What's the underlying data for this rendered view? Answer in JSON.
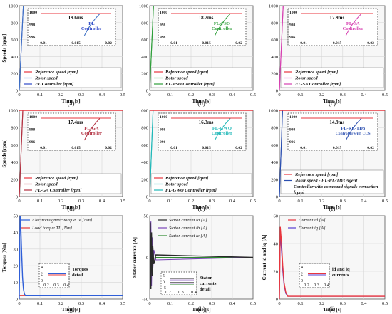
{
  "colors": {
    "reference": "#e8363e",
    "rotor": "#3c6fc4",
    "fl": "#2f48c8",
    "pso": "#2e9e3a",
    "sa": "#d63fb0",
    "ga": "#b23040",
    "gwo": "#20b8b8",
    "rl": "#2b4fb0",
    "torque_te": "#2f5fd8",
    "torque_tl": "#e43a3a",
    "stator_a": "#2a2a2a",
    "stator_b": "#7a46b8",
    "stator_c": "#2e8a30",
    "id_current": "#e8363e",
    "iq_current": "#5a3ed0"
  },
  "chart_data": [
    {
      "type": "line",
      "panel": "(a)",
      "xlabel": "Time [s]",
      "ylabel": "Speeds [rpm]",
      "xlim": [
        0,
        0.5
      ],
      "ylim": [
        0,
        1000
      ],
      "xticks": [
        "0",
        "0.1",
        "0.2",
        "0.3",
        "0.4",
        "0.5"
      ],
      "yticks": [
        "0",
        "200",
        "400",
        "600",
        "800",
        "1000"
      ],
      "series": [
        {
          "name": "Reference speed [rpm]",
          "color_key": "reference",
          "x": [
            0,
            0.5
          ],
          "y": [
            1000,
            1000
          ]
        },
        {
          "name": "Rotor speed",
          "color_key": "rotor",
          "x": [
            0,
            0.0196,
            0.5
          ],
          "y": [
            0,
            1000,
            1000
          ]
        },
        {
          "name": "FL Controller [rpm]",
          "color_key": "fl",
          "x": [
            0,
            0.0196,
            0.5
          ],
          "y": [
            0,
            1000,
            1000
          ]
        }
      ],
      "inset": {
        "annotation": "19.6ms",
        "label_lines": [
          "FL",
          "Controller"
        ],
        "label_color_key": "fl",
        "yticks": [
          "1000",
          "998",
          "996"
        ],
        "xticks": [
          "0.01",
          "0.015",
          "0.02"
        ]
      }
    },
    {
      "type": "line",
      "panel": "(b)",
      "xlabel": "Time [s]",
      "ylabel": "",
      "xlim": [
        0,
        0.5
      ],
      "ylim": [
        0,
        1000
      ],
      "xticks": [
        "0",
        "0.1",
        "0.2",
        "0.3",
        "0.4",
        "0.5"
      ],
      "yticks": [
        "0",
        "200",
        "400",
        "600",
        "800",
        "1000"
      ],
      "series": [
        {
          "name": "Reference speed [rpm]",
          "color_key": "reference",
          "x": [
            0,
            0.5
          ],
          "y": [
            1000,
            1000
          ]
        },
        {
          "name": "Rotor speed",
          "color_key": "pso",
          "x": [
            0,
            0.0182,
            0.5
          ],
          "y": [
            0,
            1000,
            1000
          ]
        },
        {
          "name": "FL-PSO Controller [rpm]",
          "color_key": "pso",
          "x": [
            0,
            0.0182,
            0.5
          ],
          "y": [
            0,
            1000,
            1000
          ]
        }
      ],
      "inset": {
        "annotation": "18.2ms",
        "label_lines": [
          "FL-PSO",
          "Controller"
        ],
        "label_color_key": "pso",
        "yticks": [
          "1000",
          "998",
          "996"
        ],
        "xticks": [
          "0.01",
          "0.015",
          "0.02"
        ]
      }
    },
    {
      "type": "line",
      "panel": "(c)",
      "xlabel": "Time [s]",
      "ylabel": "",
      "xlim": [
        0,
        0.5
      ],
      "ylim": [
        0,
        1000
      ],
      "xticks": [
        "0",
        "0.1",
        "0.2",
        "0.3",
        "0.4",
        "0.5"
      ],
      "yticks": [
        "0",
        "200",
        "400",
        "600",
        "800",
        "1000"
      ],
      "series": [
        {
          "name": "Reference speed [rpm]",
          "color_key": "reference",
          "x": [
            0,
            0.5
          ],
          "y": [
            1000,
            1000
          ]
        },
        {
          "name": "Rotor speed",
          "color_key": "sa",
          "x": [
            0,
            0.0179,
            0.5
          ],
          "y": [
            0,
            1000,
            1000
          ]
        },
        {
          "name": "FL-SA Controller [rpm]",
          "color_key": "sa",
          "x": [
            0,
            0.0179,
            0.5
          ],
          "y": [
            0,
            1000,
            1000
          ]
        }
      ],
      "inset": {
        "annotation": "17.9ms",
        "label_lines": [
          "FL-SA",
          "Controller"
        ],
        "label_color_key": "sa",
        "yticks": [
          "1000",
          "998",
          "996"
        ],
        "xticks": [
          "0.01",
          "0.015",
          "0.02"
        ]
      }
    },
    {
      "type": "line",
      "panel": "(d)",
      "xlabel": "Time [s]",
      "ylabel": "Speeds [rpm]",
      "xlim": [
        0,
        0.5
      ],
      "ylim": [
        0,
        1000
      ],
      "xticks": [
        "0",
        "0.1",
        "0.2",
        "0.3",
        "0.4",
        "0.5"
      ],
      "yticks": [
        "0",
        "200",
        "400",
        "600",
        "800",
        "1000"
      ],
      "series": [
        {
          "name": "Reference speed [rpm]",
          "color_key": "reference",
          "x": [
            0,
            0.5
          ],
          "y": [
            1000,
            1000
          ]
        },
        {
          "name": "Rotor speed",
          "color_key": "ga",
          "x": [
            0,
            0.0174,
            0.5
          ],
          "y": [
            0,
            1000,
            1000
          ]
        },
        {
          "name": "FL-GA Controller [rpm]",
          "color_key": "ga",
          "x": [
            0,
            0.0174,
            0.5
          ],
          "y": [
            0,
            1000,
            1000
          ]
        }
      ],
      "inset": {
        "annotation": "17.4ms",
        "label_lines": [
          "FL-GA",
          "Controller"
        ],
        "label_color_key": "ga",
        "yticks": [
          "1000",
          "998",
          "996"
        ],
        "xticks": [
          "0.01",
          "0.015",
          "0.02"
        ]
      }
    },
    {
      "type": "line",
      "panel": "(e)",
      "xlabel": "Time [s]",
      "ylabel": "",
      "xlim": [
        0,
        0.5
      ],
      "ylim": [
        0,
        1000
      ],
      "xticks": [
        "0",
        "0.1",
        "0.2",
        "0.3",
        "0.4",
        "0.5"
      ],
      "yticks": [
        "0",
        "200",
        "400",
        "600",
        "800",
        "1000"
      ],
      "series": [
        {
          "name": "Reference speed [rpm]",
          "color_key": "reference",
          "x": [
            0,
            0.5
          ],
          "y": [
            1000,
            1000
          ]
        },
        {
          "name": "Rotor speed",
          "color_key": "gwo",
          "x": [
            0,
            0.0163,
            0.5
          ],
          "y": [
            0,
            1000,
            1000
          ]
        },
        {
          "name": "FL-GWO Controller [rpm]",
          "color_key": "gwo",
          "x": [
            0,
            0.0163,
            0.5
          ],
          "y": [
            0,
            1000,
            1000
          ]
        }
      ],
      "inset": {
        "annotation": "16.3ms",
        "label_lines": [
          "FL-GWO",
          "Controller"
        ],
        "label_color_key": "gwo",
        "yticks": [
          "1000",
          "998",
          "996"
        ],
        "xticks": [
          "0.01",
          "0.015",
          "0.02"
        ]
      }
    },
    {
      "type": "line",
      "panel": "(f)",
      "xlabel": "Time [s]",
      "ylabel": "",
      "xlim": [
        0,
        0.5
      ],
      "ylim": [
        0,
        1000
      ],
      "xticks": [
        "0",
        "0.1",
        "0.2",
        "0.3",
        "0.4",
        "0.5"
      ],
      "yticks": [
        "0",
        "200",
        "400",
        "600",
        "800",
        "1000"
      ],
      "series": [
        {
          "name": "Reference speed [rpm]",
          "color_key": "reference",
          "x": [
            0,
            0.5
          ],
          "y": [
            1000,
            1000
          ]
        },
        {
          "name": "Rotor speed - FL-RL-TD3 Agent",
          "color_key": "rl",
          "x": [
            0,
            0.0149,
            0.5
          ],
          "y": [
            0,
            1000,
            1000
          ]
        },
        {
          "name": "Controller with command signals correction [rpm]",
          "color_key": "rl",
          "x": [
            0,
            0.0149,
            0.5
          ],
          "y": [
            0,
            1000,
            1000
          ]
        }
      ],
      "inset": {
        "annotation": "14.9ms",
        "label_lines": [
          "FL-RL-TD3",
          "Controller with CCS"
        ],
        "label_color_key": "rl",
        "yticks": [
          "1000",
          "998",
          "996"
        ],
        "xticks": [
          "0.01",
          "0.015",
          "0.02"
        ]
      }
    },
    {
      "type": "line",
      "panel": "(g)",
      "xlabel": "Time [s]",
      "ylabel": "Torques [Nm]",
      "xlim": [
        0,
        0.5
      ],
      "ylim": [
        0,
        50
      ],
      "xticks": [
        "0",
        "0.1",
        "0.2",
        "0.3",
        "0.4",
        "0.5"
      ],
      "yticks": [
        "0",
        "10",
        "20",
        "30",
        "40",
        "50"
      ],
      "series": [
        {
          "name": "Electromagnetic torque Te [Nm]",
          "color_key": "torque_te",
          "x": [
            0,
            0.004,
            0.008,
            0.012,
            0.016,
            0.02,
            0.025,
            0.03,
            0.5
          ],
          "y": [
            0,
            52,
            42,
            26,
            13,
            6,
            3,
            2,
            2
          ]
        },
        {
          "name": "Load torque TL [Nm]",
          "color_key": "torque_tl",
          "x": [
            0,
            0.5
          ],
          "y": [
            2,
            2
          ]
        }
      ],
      "inset": {
        "yticks": [
          "4",
          "2",
          "0"
        ],
        "xticks": [
          "0.2",
          "0.3",
          "0.4"
        ],
        "label_lines": [
          "Torques",
          "detail"
        ]
      }
    },
    {
      "type": "line",
      "panel": "(h)",
      "xlabel": "Time [s]",
      "ylabel": "Stator currents [A]",
      "xlim": [
        0,
        0.5
      ],
      "ylim": [
        -50,
        50
      ],
      "xticks": [
        "0",
        "0.1",
        "0.2",
        "0.3",
        "0.4",
        "0.5"
      ],
      "yticks": [
        "-50",
        "0",
        "50"
      ],
      "series": [
        {
          "name": "Stator current ia [A]",
          "color_key": "stator_a",
          "x": [
            0,
            0.003,
            0.006,
            0.009,
            0.012,
            0.015,
            0.02,
            0.03,
            0.5
          ],
          "y": [
            0,
            42,
            -38,
            30,
            -22,
            14,
            -8,
            3,
            0
          ]
        },
        {
          "name": "Stator current ib [A]",
          "color_key": "stator_b",
          "x": [
            0,
            0.003,
            0.006,
            0.009,
            0.012,
            0.015,
            0.02,
            0.03,
            0.5
          ],
          "y": [
            0,
            -30,
            44,
            -34,
            24,
            -16,
            9,
            -3,
            0
          ]
        },
        {
          "name": "Stator current ic [A]",
          "color_key": "stator_c",
          "x": [
            0,
            0.003,
            0.006,
            0.009,
            0.012,
            0.015,
            0.02,
            0.03,
            0.5
          ],
          "y": [
            0,
            -12,
            -8,
            6,
            2,
            2,
            -1,
            0,
            0
          ]
        }
      ],
      "inset": {
        "yticks": [
          "5",
          "0",
          "-5"
        ],
        "xticks": [
          "0.2",
          "0.3",
          "0.4"
        ],
        "label_lines": [
          "Stator",
          "currents",
          "detail"
        ]
      }
    },
    {
      "type": "line",
      "panel": "(i)",
      "xlabel": "Time [s]",
      "ylabel": "Current id and iq [A]",
      "xlim": [
        0,
        0.5
      ],
      "ylim": [
        0,
        60
      ],
      "xticks": [
        "0",
        "0.1",
        "0.2",
        "0.3",
        "0.4",
        "0.5"
      ],
      "yticks": [
        "0",
        "20",
        "40",
        "60"
      ],
      "series": [
        {
          "name": "Current id [A]",
          "color_key": "id_current",
          "x": [
            0,
            0.004,
            0.01,
            0.016,
            0.022,
            0.03,
            0.04,
            0.5
          ],
          "y": [
            0,
            52,
            40,
            24,
            12,
            5,
            2,
            2
          ]
        },
        {
          "name": "Current iq [A]",
          "color_key": "iq_current",
          "x": [
            0,
            0.004,
            0.01,
            0.016,
            0.022,
            0.03,
            0.04,
            0.5
          ],
          "y": [
            0,
            46,
            34,
            20,
            10,
            4,
            2,
            2
          ]
        }
      ],
      "inset": {
        "yticks": [
          "4",
          "2",
          "0"
        ],
        "xticks": [
          "0.2",
          "0.3",
          "0.4"
        ],
        "label_lines": [
          "id and iq",
          "currents"
        ]
      }
    }
  ],
  "captions": [
    "(a)",
    "(b)",
    "(c)",
    "(d)",
    "(e)",
    "(f)",
    "(g)",
    "(h)",
    "(i)"
  ]
}
